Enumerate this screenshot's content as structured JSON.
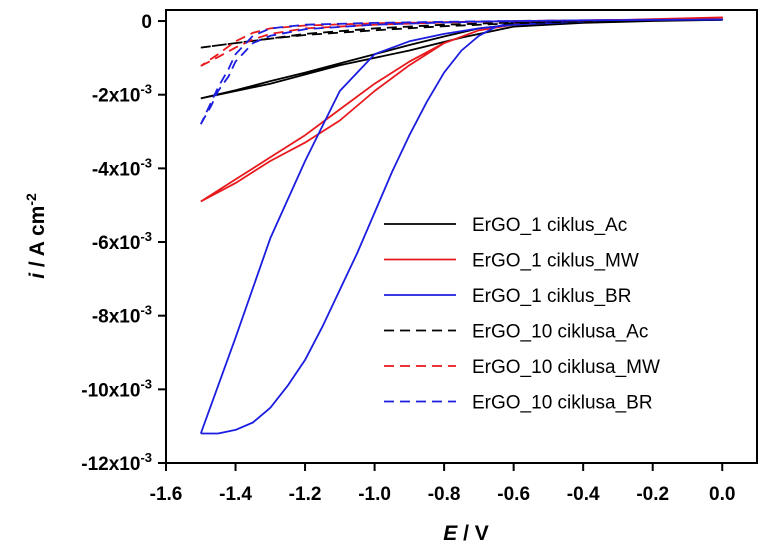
{
  "chart_data": {
    "type": "line",
    "xlabel": {
      "var": "E",
      "unit": " / V"
    },
    "ylabel": {
      "var": "i",
      "unit": " / A cm",
      "sup": "-2"
    },
    "xlim": [
      -1.6,
      0.1
    ],
    "ylim": [
      -0.012,
      0.0003
    ],
    "xticks": [
      {
        "value": -1.6,
        "label": "-1.6"
      },
      {
        "value": -1.4,
        "label": "-1.4"
      },
      {
        "value": -1.2,
        "label": "-1.2"
      },
      {
        "value": -1.0,
        "label": "-1.0"
      },
      {
        "value": -0.8,
        "label": "-0.8"
      },
      {
        "value": -0.6,
        "label": "-0.6"
      },
      {
        "value": -0.4,
        "label": "-0.4"
      },
      {
        "value": -0.2,
        "label": "-0.2"
      },
      {
        "value": 0.0,
        "label": "0.0"
      }
    ],
    "yticks": [
      {
        "value": 0,
        "label": "0"
      },
      {
        "value": -0.002,
        "label": "-2x10",
        "exp": "-3"
      },
      {
        "value": -0.004,
        "label": "-4x10",
        "exp": "-3"
      },
      {
        "value": -0.006,
        "label": "-6x10",
        "exp": "-3"
      },
      {
        "value": -0.008,
        "label": "-8x10",
        "exp": "-3"
      },
      {
        "value": -0.01,
        "label": "-10x10",
        "exp": "-3"
      },
      {
        "value": -0.012,
        "label": "-12x10",
        "exp": "-3"
      }
    ],
    "grid": false,
    "legend": "center-right",
    "series": [
      {
        "name": "ErGO_1 ciklus_Ac",
        "color": "#000000",
        "dash": "solid",
        "x": [
          -1.5,
          -1.3,
          -1.1,
          -0.9,
          -0.75,
          -0.6,
          -0.4,
          -0.2,
          0.0,
          -0.2,
          -0.4,
          -0.6,
          -0.7,
          -0.8,
          -0.9,
          -1.0,
          -1.1,
          -1.2,
          -1.3,
          -1.4,
          -1.5
        ],
        "y": [
          -0.0021,
          -0.0017,
          -0.0012,
          -0.0008,
          -0.00045,
          -0.00015,
          -5e-05,
          0.0,
          3e-05,
          2e-05,
          -2e-05,
          -0.0001,
          -0.0002,
          -0.00042,
          -0.00065,
          -0.0009,
          -0.00115,
          -0.0014,
          -0.00163,
          -0.00188,
          -0.0021
        ]
      },
      {
        "name": "ErGO_1 ciklus_MW",
        "color": "#e8191c",
        "dash": "solid",
        "x": [
          -1.5,
          -1.4,
          -1.3,
          -1.2,
          -1.1,
          -1.0,
          -0.9,
          -0.8,
          -0.7,
          -0.6,
          -0.4,
          -0.2,
          0.0,
          -0.2,
          -0.4,
          -0.6,
          -0.7,
          -0.8,
          -0.9,
          -1.0,
          -1.1,
          -1.2,
          -1.3,
          -1.4,
          -1.5
        ],
        "y": [
          -0.0049,
          -0.0043,
          -0.0037,
          -0.0031,
          -0.0024,
          -0.0017,
          -0.0011,
          -0.0006,
          -0.00025,
          -6e-05,
          0.0,
          5e-05,
          0.0001,
          5e-05,
          0.0,
          -0.0001,
          -0.00025,
          -0.0006,
          -0.0012,
          -0.0019,
          -0.0027,
          -0.0033,
          -0.0038,
          -0.0044,
          -0.0049
        ]
      },
      {
        "name": "ErGO_1 ciklus_BR",
        "color": "#1b1de0",
        "dash": "solid",
        "x": [
          -1.5,
          -1.45,
          -1.4,
          -1.35,
          -1.3,
          -1.25,
          -1.2,
          -1.15,
          -1.1,
          -1.05,
          -1.0,
          -0.95,
          -0.9,
          -0.85,
          -0.8,
          -0.75,
          -0.7,
          -0.65,
          -0.6,
          -0.5,
          -0.3,
          0.0,
          -0.3,
          -0.6,
          -0.7,
          -0.8,
          -0.9,
          -1.0,
          -1.1,
          -1.2,
          -1.3,
          -1.4,
          -1.5
        ],
        "y": [
          -0.0112,
          -0.0112,
          -0.0111,
          -0.0109,
          -0.0105,
          -0.0099,
          -0.0092,
          -0.0083,
          -0.0073,
          -0.0063,
          -0.0052,
          -0.0041,
          -0.0031,
          -0.0022,
          -0.0014,
          -0.0008,
          -0.0004,
          -0.00015,
          -3e-05,
          0.0,
          3e-05,
          5e-05,
          3e-05,
          -0.0001,
          -0.0002,
          -0.00035,
          -0.00055,
          -0.0009,
          -0.0019,
          -0.0038,
          -0.0059,
          -0.0086,
          -0.0112
        ]
      },
      {
        "name": "ErGO_10 ciklusa_Ac",
        "color": "#000000",
        "dash": "dashed",
        "x": [
          -1.5,
          -1.4,
          -1.3,
          -1.2,
          -1.0,
          -0.8,
          -0.6,
          -0.4,
          -0.2,
          0.0,
          -0.2,
          -0.4,
          -0.6,
          -0.8,
          -1.0,
          -1.2,
          -1.4,
          -1.5
        ],
        "y": [
          -0.00072,
          -0.0006,
          -0.00048,
          -0.00038,
          -0.00025,
          -0.00014,
          -6e-05,
          -1e-05,
          2e-05,
          3e-05,
          2e-05,
          0.0,
          -4e-05,
          -0.0001,
          -0.0002,
          -0.00035,
          -0.0006,
          -0.00072
        ]
      },
      {
        "name": "ErGO_10 ciklusa_MW",
        "color": "#e8191c",
        "dash": "dashed",
        "x": [
          -1.5,
          -1.45,
          -1.4,
          -1.35,
          -1.3,
          -1.2,
          -1.0,
          -0.8,
          -0.6,
          -0.4,
          -0.2,
          0.0,
          -0.2,
          -0.4,
          -0.6,
          -0.8,
          -1.0,
          -1.2,
          -1.3,
          -1.35,
          -1.4,
          -1.45,
          -1.5
        ],
        "y": [
          -0.00122,
          -0.00098,
          -0.00072,
          -0.0005,
          -0.00035,
          -0.0002,
          -0.0001,
          -4e-05,
          0.0,
          2e-05,
          4e-05,
          5e-05,
          4e-05,
          2e-05,
          0.0,
          -3e-05,
          -6e-05,
          -0.00012,
          -0.0002,
          -0.00032,
          -0.00055,
          -0.0009,
          -0.00122
        ]
      },
      {
        "name": "ErGO_10 ciklusa_BR",
        "color": "#1b1de0",
        "dash": "dashed",
        "x": [
          -1.5,
          -1.47,
          -1.45,
          -1.42,
          -1.4,
          -1.37,
          -1.35,
          -1.3,
          -1.2,
          -1.0,
          -0.8,
          -0.6,
          -0.4,
          -0.2,
          0.0,
          -0.2,
          -0.4,
          -0.6,
          -0.8,
          -1.0,
          -1.2,
          -1.3,
          -1.35,
          -1.4,
          -1.42,
          -1.45,
          -1.47,
          -1.5
        ],
        "y": [
          -0.0028,
          -0.0023,
          -0.0019,
          -0.0015,
          -0.0011,
          -0.0008,
          -0.0006,
          -0.0004,
          -0.00022,
          -0.0001,
          -4e-05,
          0.0,
          2e-05,
          3e-05,
          4e-05,
          3e-05,
          2e-05,
          0.0,
          -2e-05,
          -5e-05,
          -0.0001,
          -0.0002,
          -0.0004,
          -0.0009,
          -0.0013,
          -0.0018,
          -0.0022,
          -0.0028
        ]
      }
    ]
  }
}
